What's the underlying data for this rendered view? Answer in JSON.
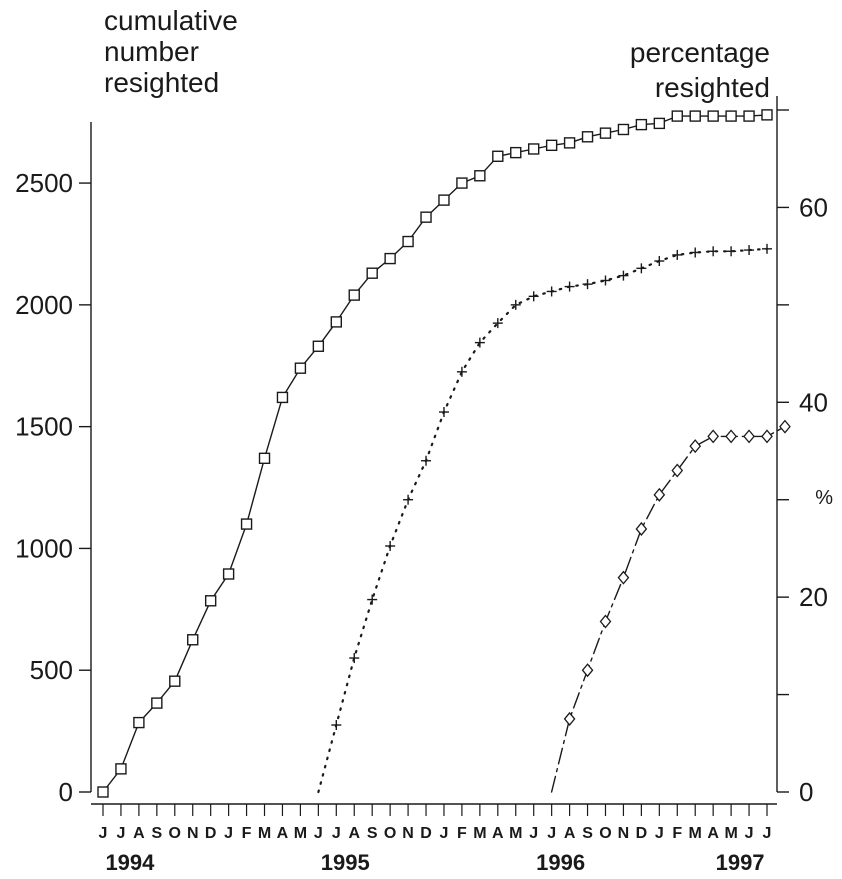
{
  "chart_data": {
    "type": "line",
    "left_axis_title": [
      "cumulative",
      "number",
      "resighted"
    ],
    "right_axis_title": [
      "percentage",
      "resighted"
    ],
    "right_unit": "%",
    "left_ylim": [
      0,
      2800
    ],
    "right_ylim": [
      0,
      70
    ],
    "left_ticks": [
      {
        "value": 0,
        "label": "0"
      },
      {
        "value": 500,
        "label": "500"
      },
      {
        "value": 1000,
        "label": "1000"
      },
      {
        "value": 1500,
        "label": "1500"
      },
      {
        "value": 2000,
        "label": "2000"
      },
      {
        "value": 2500,
        "label": "2500"
      }
    ],
    "right_ticks": [
      {
        "value": 0,
        "label": "0"
      },
      {
        "value": 10,
        "label": ""
      },
      {
        "value": 20,
        "label": "20"
      },
      {
        "value": 30,
        "label": ""
      },
      {
        "value": 40,
        "label": "40"
      },
      {
        "value": 50,
        "label": ""
      },
      {
        "value": 60,
        "label": "60"
      },
      {
        "value": 70,
        "label": ""
      }
    ],
    "months": [
      "J",
      "J",
      "A",
      "S",
      "O",
      "N",
      "D",
      "J",
      "F",
      "M",
      "A",
      "M",
      "J",
      "J",
      "A",
      "S",
      "O",
      "N",
      "D",
      "J",
      "F",
      "M",
      "A",
      "M",
      "J",
      "J",
      "A",
      "S",
      "O",
      "N",
      "D",
      "J",
      "F",
      "M",
      "A",
      "M",
      "J",
      "J"
    ],
    "years": [
      {
        "label": "1994",
        "month_index": 1.5
      },
      {
        "label": "1995",
        "month_index": 13.5
      },
      {
        "label": "1996",
        "month_index": 25.5
      },
      {
        "label": "1997",
        "month_index": 35.5
      }
    ],
    "series": [
      {
        "axis": "left",
        "marker": "square",
        "line": "solid",
        "start_index": 0,
        "values": [
          0,
          95,
          285,
          365,
          455,
          625,
          785,
          895,
          1100,
          1370,
          1620,
          1740,
          1830,
          1930,
          2040,
          2130,
          2190,
          2260,
          2360,
          2430,
          2500,
          2530,
          2610,
          2625,
          2640,
          2655,
          2665,
          2690,
          2705,
          2720,
          2740,
          2745,
          2775,
          2775,
          2775,
          2775,
          2775,
          2780
        ]
      },
      {
        "axis": "left",
        "marker": "plus",
        "line": "dotted",
        "start_index": 12,
        "values": [
          0,
          275,
          550,
          790,
          1010,
          1200,
          1360,
          1560,
          1725,
          1845,
          1925,
          2000,
          2035,
          2055,
          2075,
          2085,
          2100,
          2120,
          2150,
          2180,
          2205,
          2215,
          2220,
          2220,
          2225,
          2230
        ]
      },
      {
        "axis": "right",
        "marker": "diamond",
        "line": "dashed",
        "start_index": 25,
        "values": [
          0,
          7.5,
          12.5,
          17.5,
          22,
          27,
          30.5,
          33,
          35.5,
          36.5,
          36.5,
          36.5,
          36.5,
          37.5
        ]
      }
    ]
  }
}
